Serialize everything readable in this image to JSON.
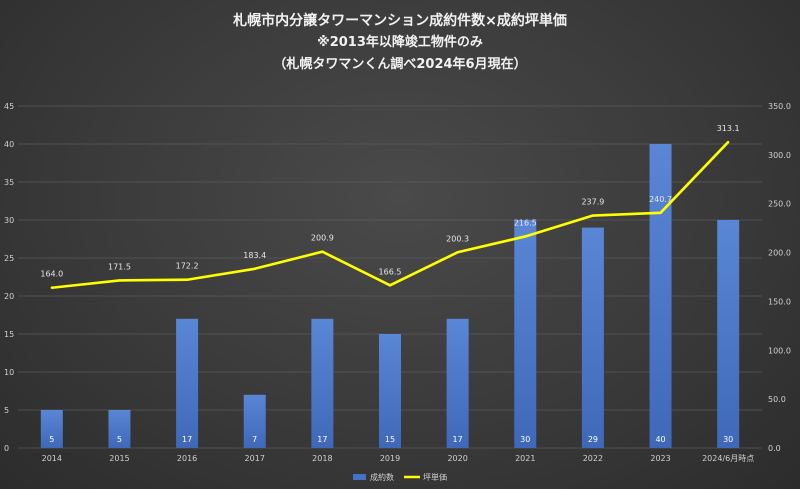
{
  "chart_data": {
    "type": "bar",
    "title": "札幌市内分譲タワーマンション成約件数×成約坪単価",
    "subtitle": "※2013年以降竣工物件のみ",
    "subtitle2": "（札幌タワマンくん調べ2024年6月現在）",
    "categories": [
      "2014",
      "2015",
      "2016",
      "2017",
      "2018",
      "2019",
      "2020",
      "2021",
      "2022",
      "2023",
      "2024/6月時点"
    ],
    "series": [
      {
        "name": "成約数",
        "type": "bar",
        "axis": "left",
        "color": "#4472c4",
        "values": [
          5,
          5,
          17,
          7,
          17,
          15,
          17,
          30,
          29,
          40,
          30
        ]
      },
      {
        "name": "坪単価",
        "type": "line",
        "axis": "right",
        "color": "#ffff00",
        "values": [
          164.0,
          171.5,
          172.2,
          183.4,
          200.9,
          166.5,
          200.3,
          216.5,
          237.9,
          240.7,
          313.1
        ],
        "labels": [
          "164.0",
          "171.5",
          "172.2",
          "183.4",
          "200.9",
          "166.5",
          "200.3",
          "216.5",
          "237.9",
          "240.7",
          "313.1"
        ]
      }
    ],
    "ylim_left": [
      0,
      45
    ],
    "yticks_left": [
      "0",
      "5",
      "10",
      "15",
      "20",
      "25",
      "30",
      "35",
      "40",
      "45"
    ],
    "ylim_right": [
      0,
      350
    ],
    "yticks_right": [
      "0.0",
      "50.0",
      "100.0",
      "150.0",
      "200.0",
      "250.0",
      "300.0",
      "350.0"
    ],
    "legend": "bottom-center",
    "grid": true
  }
}
